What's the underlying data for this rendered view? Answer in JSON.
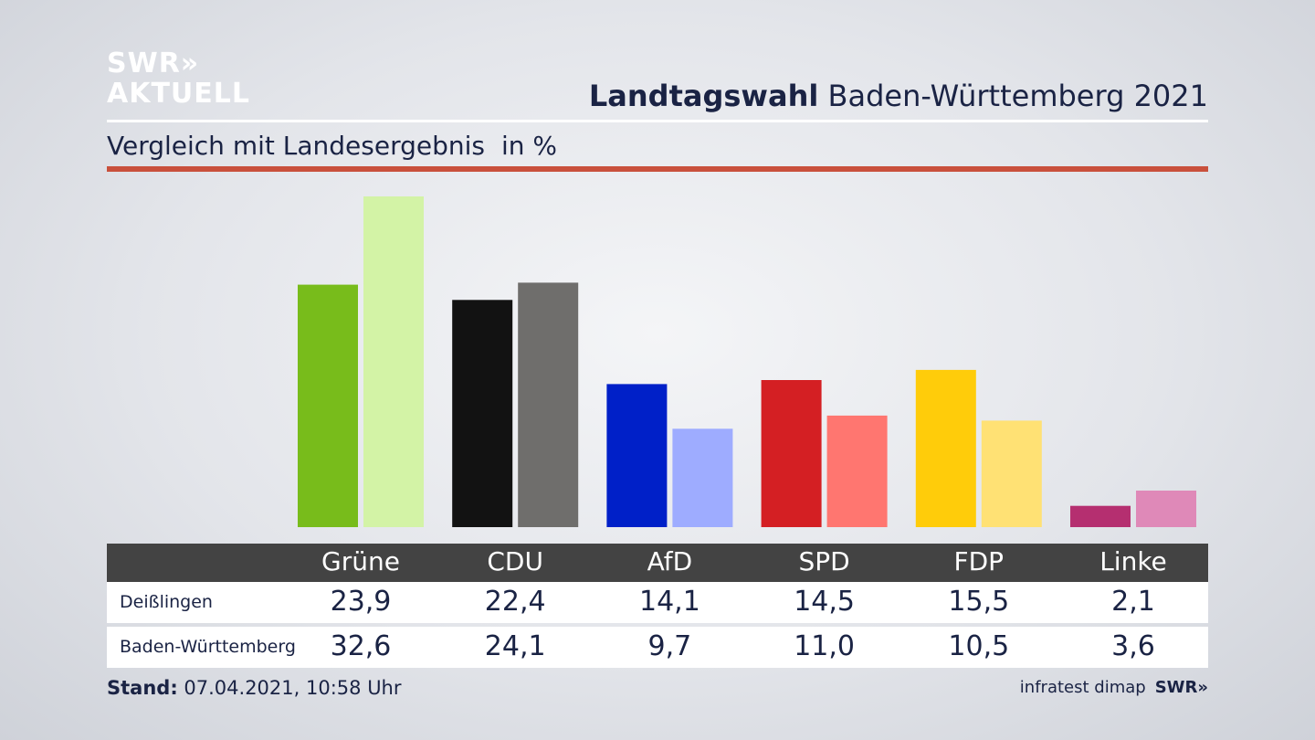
{
  "logo": {
    "line1": "SWR»",
    "line2": "AKTUELL"
  },
  "header": {
    "title_bold": "Landtagswahl",
    "title_rest": "Baden-Württemberg 2021"
  },
  "subheader": {
    "text": "Vergleich mit Landesergebnis",
    "unit": "in %"
  },
  "footer": {
    "stand_label": "Stand:",
    "stand_value": "07.04.2021, 10:58 Uhr",
    "source": "infratest dimap",
    "brand": "SWR»"
  },
  "colors": {
    "accent_rule": "#c9503c",
    "table_header": "#434343"
  },
  "chart_data": {
    "type": "bar",
    "categories": [
      "Grüne",
      "CDU",
      "AfD",
      "SPD",
      "FDP",
      "Linke"
    ],
    "series": [
      {
        "name": "Deißlingen",
        "values": [
          23.9,
          22.4,
          14.1,
          14.5,
          15.5,
          2.1
        ],
        "labels": [
          "23,9",
          "22,4",
          "14,1",
          "14,5",
          "15,5",
          "2,1"
        ],
        "colors": [
          "#78bc1b",
          "#121212",
          "#0020c8",
          "#d41f23",
          "#ffcc0a",
          "#b52f70"
        ]
      },
      {
        "name": "Baden-Württemberg",
        "values": [
          32.6,
          24.1,
          9.7,
          11.0,
          10.5,
          3.6
        ],
        "labels": [
          "32,6",
          "24,1",
          "9,7",
          "11,0",
          "10,5",
          "3,6"
        ],
        "colors": [
          "#d3f3a6",
          "#6f6e6c",
          "#9eacff",
          "#ff7670",
          "#ffe174",
          "#df89b8"
        ]
      }
    ],
    "ylim": [
      0,
      32.6
    ]
  }
}
